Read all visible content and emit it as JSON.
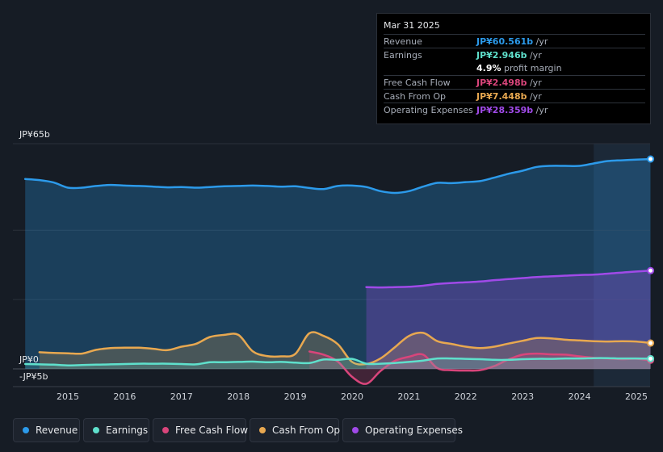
{
  "colors": {
    "revenue": "#2c9aea",
    "earnings": "#5fe0cc",
    "fcf": "#d9457b",
    "cfo": "#e8a850",
    "opex": "#a04ae8",
    "grid": "#2a303a",
    "axis_text": "#cfd3da"
  },
  "tooltip": {
    "date": "Mar 31 2025",
    "rows": [
      {
        "label": "Revenue",
        "value": "JP¥60.561b",
        "unit": " /yr",
        "color": "#2c9aea"
      },
      {
        "label": "Earnings",
        "value": "JP¥2.946b",
        "unit": " /yr",
        "color": "#5fe0cc"
      },
      {
        "label": "",
        "value": "4.9%",
        "unit": " profit margin",
        "color": "#ffffff"
      },
      {
        "label": "Free Cash Flow",
        "value": "JP¥2.498b",
        "unit": " /yr",
        "color": "#d9457b"
      },
      {
        "label": "Cash From Op",
        "value": "JP¥7.448b",
        "unit": " /yr",
        "color": "#e8a850"
      },
      {
        "label": "Operating Expenses",
        "value": "JP¥28.359b",
        "unit": " /yr",
        "color": "#a04ae8"
      }
    ]
  },
  "legend": [
    "Revenue",
    "Earnings",
    "Free Cash Flow",
    "Cash From Op",
    "Operating Expenses"
  ],
  "chart_data": {
    "type": "area",
    "title": "",
    "xlabel": "",
    "ylabel": "",
    "ylim": [
      -5,
      65
    ],
    "y_tick_labels": [
      "JP¥65b",
      "JP¥0",
      "-JP¥5b"
    ],
    "x_ticks": [
      "2015",
      "2016",
      "2017",
      "2018",
      "2019",
      "2020",
      "2021",
      "2022",
      "2023",
      "2024",
      "2025"
    ],
    "series": [
      {
        "name": "Revenue",
        "key": "revenue",
        "x": [
          2014.25,
          2014.5,
          2014.75,
          2015.0,
          2015.25,
          2015.5,
          2015.75,
          2016.0,
          2016.25,
          2016.5,
          2016.75,
          2017.0,
          2017.25,
          2017.5,
          2017.75,
          2018.0,
          2018.25,
          2018.5,
          2018.75,
          2019.0,
          2019.25,
          2019.5,
          2019.75,
          2020.0,
          2020.25,
          2020.5,
          2020.75,
          2021.0,
          2021.25,
          2021.5,
          2021.75,
          2022.0,
          2022.25,
          2022.5,
          2022.75,
          2023.0,
          2023.25,
          2023.5,
          2023.75,
          2024.0,
          2024.25,
          2024.5,
          2024.75,
          2025.0,
          2025.25
        ],
        "y": [
          54.8,
          54.5,
          53.8,
          52.3,
          52.3,
          52.8,
          53.1,
          52.9,
          52.8,
          52.6,
          52.4,
          52.5,
          52.3,
          52.5,
          52.7,
          52.8,
          52.9,
          52.8,
          52.6,
          52.7,
          52.2,
          51.9,
          52.8,
          52.9,
          52.5,
          51.3,
          50.8,
          51.3,
          52.6,
          53.7,
          53.6,
          53.9,
          54.2,
          55.2,
          56.3,
          57.2,
          58.3,
          58.6,
          58.6,
          58.6,
          59.3,
          60.0,
          60.2,
          60.4,
          60.561
        ]
      },
      {
        "name": "Operating Expenses",
        "key": "opex",
        "x": [
          2020.25,
          2020.5,
          2020.75,
          2021.0,
          2021.25,
          2021.5,
          2021.75,
          2022.0,
          2022.25,
          2022.5,
          2022.75,
          2023.0,
          2023.25,
          2023.5,
          2023.75,
          2024.0,
          2024.25,
          2024.5,
          2024.75,
          2025.0,
          2025.25
        ],
        "y": [
          23.6,
          23.5,
          23.6,
          23.7,
          24.0,
          24.5,
          24.8,
          25.0,
          25.2,
          25.6,
          25.9,
          26.2,
          26.5,
          26.7,
          26.9,
          27.1,
          27.2,
          27.5,
          27.8,
          28.1,
          28.359
        ]
      },
      {
        "name": "Cash From Op",
        "key": "cfo",
        "x": [
          2014.5,
          2014.75,
          2015.0,
          2015.25,
          2015.5,
          2015.75,
          2016.0,
          2016.25,
          2016.5,
          2016.75,
          2017.0,
          2017.25,
          2017.5,
          2017.75,
          2018.0,
          2018.25,
          2018.5,
          2018.75,
          2019.0,
          2019.25,
          2019.5,
          2019.75,
          2020.0,
          2020.25,
          2020.5,
          2020.75,
          2021.0,
          2021.25,
          2021.5,
          2021.75,
          2022.0,
          2022.25,
          2022.5,
          2022.75,
          2023.0,
          2023.25,
          2023.5,
          2023.75,
          2024.0,
          2024.25,
          2024.5,
          2024.75,
          2025.0,
          2025.25
        ],
        "y": [
          4.8,
          4.6,
          4.5,
          4.4,
          5.5,
          6.0,
          6.1,
          6.1,
          5.8,
          5.4,
          6.4,
          7.2,
          9.2,
          9.8,
          9.8,
          5.1,
          3.7,
          3.6,
          4.3,
          10.3,
          9.5,
          7.1,
          2.0,
          1.4,
          3.0,
          6.2,
          9.5,
          10.4,
          8.0,
          7.2,
          6.4,
          6.0,
          6.4,
          7.3,
          8.1,
          8.9,
          8.8,
          8.4,
          8.2,
          8.0,
          7.9,
          8.0,
          7.9,
          7.448
        ]
      },
      {
        "name": "Free Cash Flow",
        "key": "fcf",
        "x": [
          2019.25,
          2019.5,
          2019.75,
          2020.0,
          2020.25,
          2020.5,
          2020.75,
          2021.0,
          2021.25,
          2021.5,
          2021.75,
          2022.0,
          2022.25,
          2022.5,
          2022.75,
          2023.0,
          2023.25,
          2023.5,
          2023.75,
          2024.0,
          2024.25,
          2024.5,
          2024.75,
          2025.0,
          2025.25
        ],
        "y": [
          5.0,
          4.1,
          2.1,
          -2.3,
          -4.3,
          -0.6,
          2.3,
          3.5,
          4.1,
          0.2,
          -0.4,
          -0.5,
          -0.4,
          0.8,
          2.7,
          4.1,
          4.4,
          4.2,
          4.1,
          3.6,
          3.2,
          3.0,
          2.8,
          2.9,
          2.498
        ]
      },
      {
        "name": "Earnings",
        "key": "earnings",
        "x": [
          2014.25,
          2014.5,
          2014.75,
          2015.0,
          2015.25,
          2015.5,
          2015.75,
          2016.0,
          2016.25,
          2016.5,
          2016.75,
          2017.0,
          2017.25,
          2017.5,
          2017.75,
          2018.0,
          2018.25,
          2018.5,
          2018.75,
          2019.0,
          2019.25,
          2019.5,
          2019.75,
          2020.0,
          2020.25,
          2020.5,
          2020.75,
          2021.0,
          2021.25,
          2021.5,
          2021.75,
          2022.0,
          2022.25,
          2022.5,
          2022.75,
          2023.0,
          2023.25,
          2023.5,
          2023.75,
          2024.0,
          2024.25,
          2024.5,
          2024.75,
          2025.0,
          2025.25
        ],
        "y": [
          1.4,
          1.3,
          1.2,
          1.0,
          1.1,
          1.2,
          1.3,
          1.4,
          1.5,
          1.5,
          1.5,
          1.4,
          1.3,
          1.9,
          1.9,
          2.0,
          2.1,
          1.9,
          2.0,
          1.8,
          1.7,
          2.7,
          2.6,
          2.9,
          1.5,
          1.5,
          1.7,
          2.0,
          2.4,
          3.0,
          3.0,
          2.9,
          2.8,
          2.6,
          2.6,
          2.8,
          2.9,
          2.9,
          3.0,
          3.0,
          3.1,
          3.1,
          3.0,
          3.0,
          2.946
        ]
      }
    ]
  }
}
